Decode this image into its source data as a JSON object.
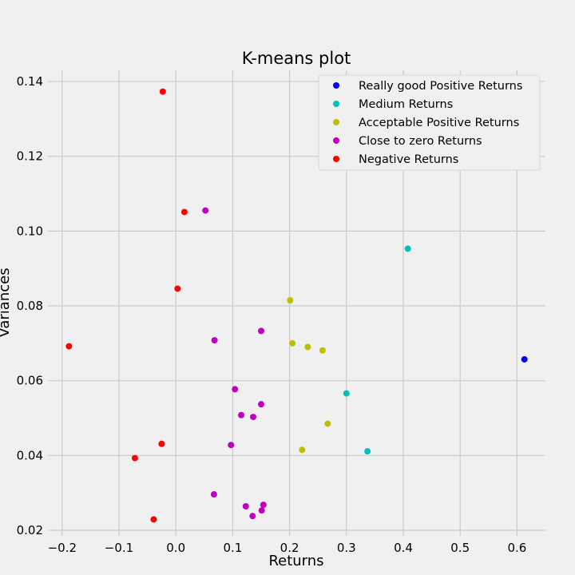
{
  "chart_data": {
    "type": "scatter",
    "title": "K-means plot",
    "xlabel": "Returns",
    "ylabel": "Variances",
    "xlim": [
      -0.225,
      0.65
    ],
    "ylim": [
      0.0185,
      0.143
    ],
    "x_ticks": [
      -0.2,
      -0.1,
      0.0,
      0.1,
      0.2,
      0.3,
      0.4,
      0.5,
      0.6
    ],
    "x_tick_labels": [
      "−0.2",
      "−0.1",
      "0.0",
      "0.1",
      "0.2",
      "0.3",
      "0.4",
      "0.5",
      "0.6"
    ],
    "y_ticks": [
      0.02,
      0.04,
      0.06,
      0.08,
      0.1,
      0.12,
      0.14
    ],
    "y_tick_labels": [
      "0.02",
      "0.04",
      "0.06",
      "0.08",
      "0.10",
      "0.12",
      "0.14"
    ],
    "grid": true,
    "legend_position": "top-right",
    "series": [
      {
        "name": "Really good Positive Returns",
        "color": "#0000ff",
        "points": [
          [
            0.613,
            0.0657
          ]
        ]
      },
      {
        "name": "Medium Returns",
        "color": "#00bfbf",
        "points": [
          [
            0.408,
            0.0953
          ],
          [
            0.3,
            0.0566
          ],
          [
            0.337,
            0.0411
          ]
        ]
      },
      {
        "name": "Acceptable Positive Returns",
        "color": "#bfbf00",
        "points": [
          [
            0.201,
            0.0815
          ],
          [
            0.205,
            0.07
          ],
          [
            0.232,
            0.069
          ],
          [
            0.258,
            0.0681
          ],
          [
            0.267,
            0.0485
          ],
          [
            0.222,
            0.0415
          ]
        ]
      },
      {
        "name": "Close to zero Returns",
        "color": "#bf00bf",
        "points": [
          [
            0.052,
            0.1055
          ],
          [
            0.068,
            0.0708
          ],
          [
            0.15,
            0.0733
          ],
          [
            0.104,
            0.0577
          ],
          [
            0.15,
            0.0537
          ],
          [
            0.115,
            0.0508
          ],
          [
            0.136,
            0.0503
          ],
          [
            0.097,
            0.0428
          ],
          [
            0.067,
            0.0296
          ],
          [
            0.123,
            0.0264
          ],
          [
            0.154,
            0.0268
          ],
          [
            0.151,
            0.0253
          ],
          [
            0.135,
            0.0238
          ]
        ]
      },
      {
        "name": "Negative Returns",
        "color": "#ff0000",
        "points": [
          [
            -0.023,
            0.1373
          ],
          [
            0.015,
            0.1051
          ],
          [
            0.003,
            0.0846
          ],
          [
            -0.188,
            0.0692
          ],
          [
            -0.025,
            0.0431
          ],
          [
            -0.072,
            0.0393
          ],
          [
            -0.039,
            0.0229
          ]
        ]
      }
    ]
  }
}
